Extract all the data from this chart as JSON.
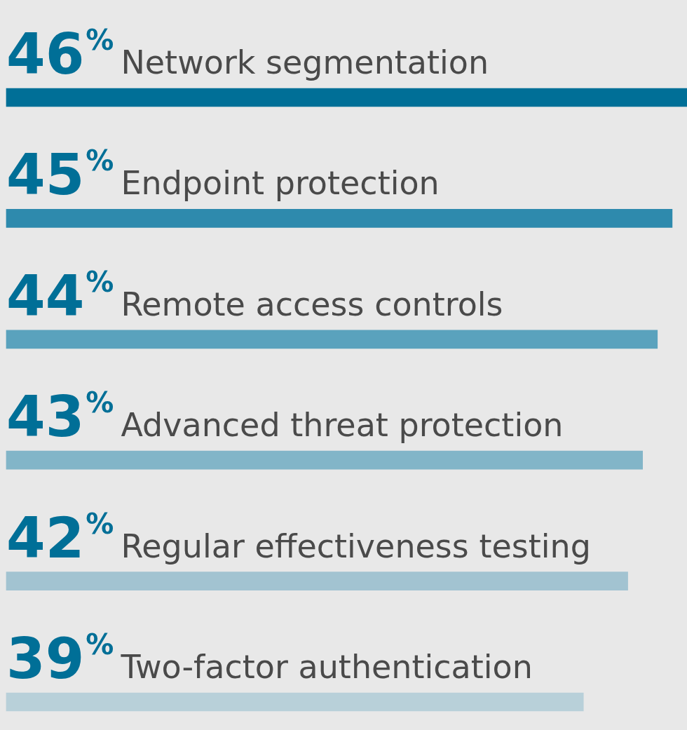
{
  "chart_data": {
    "type": "bar",
    "orientation": "horizontal",
    "categories": [
      "Network segmentation",
      "Endpoint protection",
      "Remote access controls",
      "Advanced threat protection",
      "Regular effectiveness testing",
      "Two-factor authentication"
    ],
    "values": [
      46,
      45,
      44,
      43,
      42,
      39
    ],
    "value_labels": [
      "46%",
      "45%",
      "44%",
      "43%",
      "42%",
      "39%"
    ],
    "colors": [
      "#006f97",
      "#2e8aad",
      "#5aa2bd",
      "#82b5c8",
      "#a2c3d1",
      "#b8d0d9"
    ],
    "xlim": [
      0,
      46
    ],
    "tick_labels": false,
    "grid": false,
    "legend": false
  }
}
